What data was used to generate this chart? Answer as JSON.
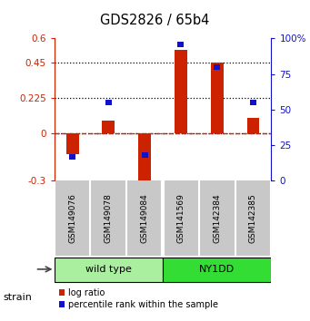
{
  "title": "GDS2826 / 65b4",
  "samples": [
    "GSM149076",
    "GSM149078",
    "GSM149084",
    "GSM141569",
    "GSM142384",
    "GSM142385"
  ],
  "log_ratios": [
    -0.13,
    0.08,
    -0.32,
    0.53,
    0.45,
    0.1
  ],
  "percentile_ranks": [
    17,
    55,
    18,
    96,
    80,
    55
  ],
  "ylim_left": [
    -0.3,
    0.6
  ],
  "ylim_right": [
    0,
    100
  ],
  "yticks_left": [
    -0.3,
    0,
    0.225,
    0.45,
    0.6
  ],
  "yticks_right": [
    0,
    25,
    50,
    75,
    100
  ],
  "hlines_dotted": [
    0.225,
    0.45
  ],
  "bar_color_red": "#CC2200",
  "bar_color_blue": "#1111CC",
  "bar_width": 0.35,
  "blue_bar_width": 0.18,
  "bg_color": "#ffffff",
  "label_color_left": "#CC2200",
  "label_color_right": "#1111CC",
  "legend_red": "log ratio",
  "legend_blue": "percentile rank within the sample",
  "wt_color": "#AAEEA0",
  "ny_color": "#33DD33",
  "sample_bg_color": "#C8C8C8",
  "group_boundary": 2.5,
  "wild_type_label": "wild type",
  "ny1dd_label": "NY1DD",
  "strain_label": "strain"
}
